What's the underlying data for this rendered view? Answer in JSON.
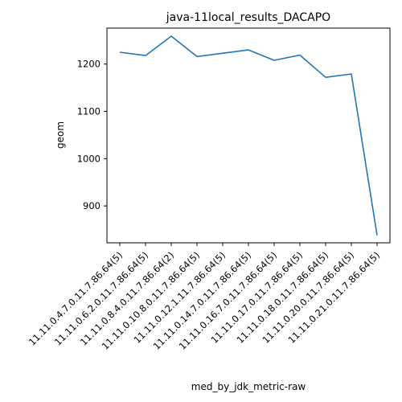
{
  "chart_data": {
    "type": "line",
    "title": "java-11local_results_DACAPO",
    "xlabel": "med_by_jdk_metric-raw",
    "ylabel": "geom",
    "categories": [
      "11.11.0.4.7.0.11.7.86.64(5)",
      "11.11.0.6.2.0.11.7.86.64(5)",
      "11.11.0.8.4.0.11.7.86.64(2)",
      "11.11.0.10.8.0.11.7.86.64(5)",
      "11.11.0.12.1.11.7.86.64(5)",
      "11.11.0.14.7.0.11.7.86.64(5)",
      "11.11.0.16.7.0.11.7.86.64(5)",
      "11.11.0.17.0.11.7.86.64(5)",
      "11.11.0.18.0.11.7.86.64(5)",
      "11.11.0.20.0.11.7.86.64(5)",
      "11.11.0.21.0.11.7.86.64(5)"
    ],
    "series": [
      {
        "color": "#1f77b4",
        "values": [
          1225,
          1218,
          1259,
          1216,
          1223,
          1230,
          1208,
          1219,
          1172,
          1179,
          838
        ]
      }
    ],
    "yticks": [
      900,
      1000,
      1100,
      1200
    ],
    "ylim": [
      822,
      1276
    ],
    "grid": false,
    "legend": "none"
  }
}
